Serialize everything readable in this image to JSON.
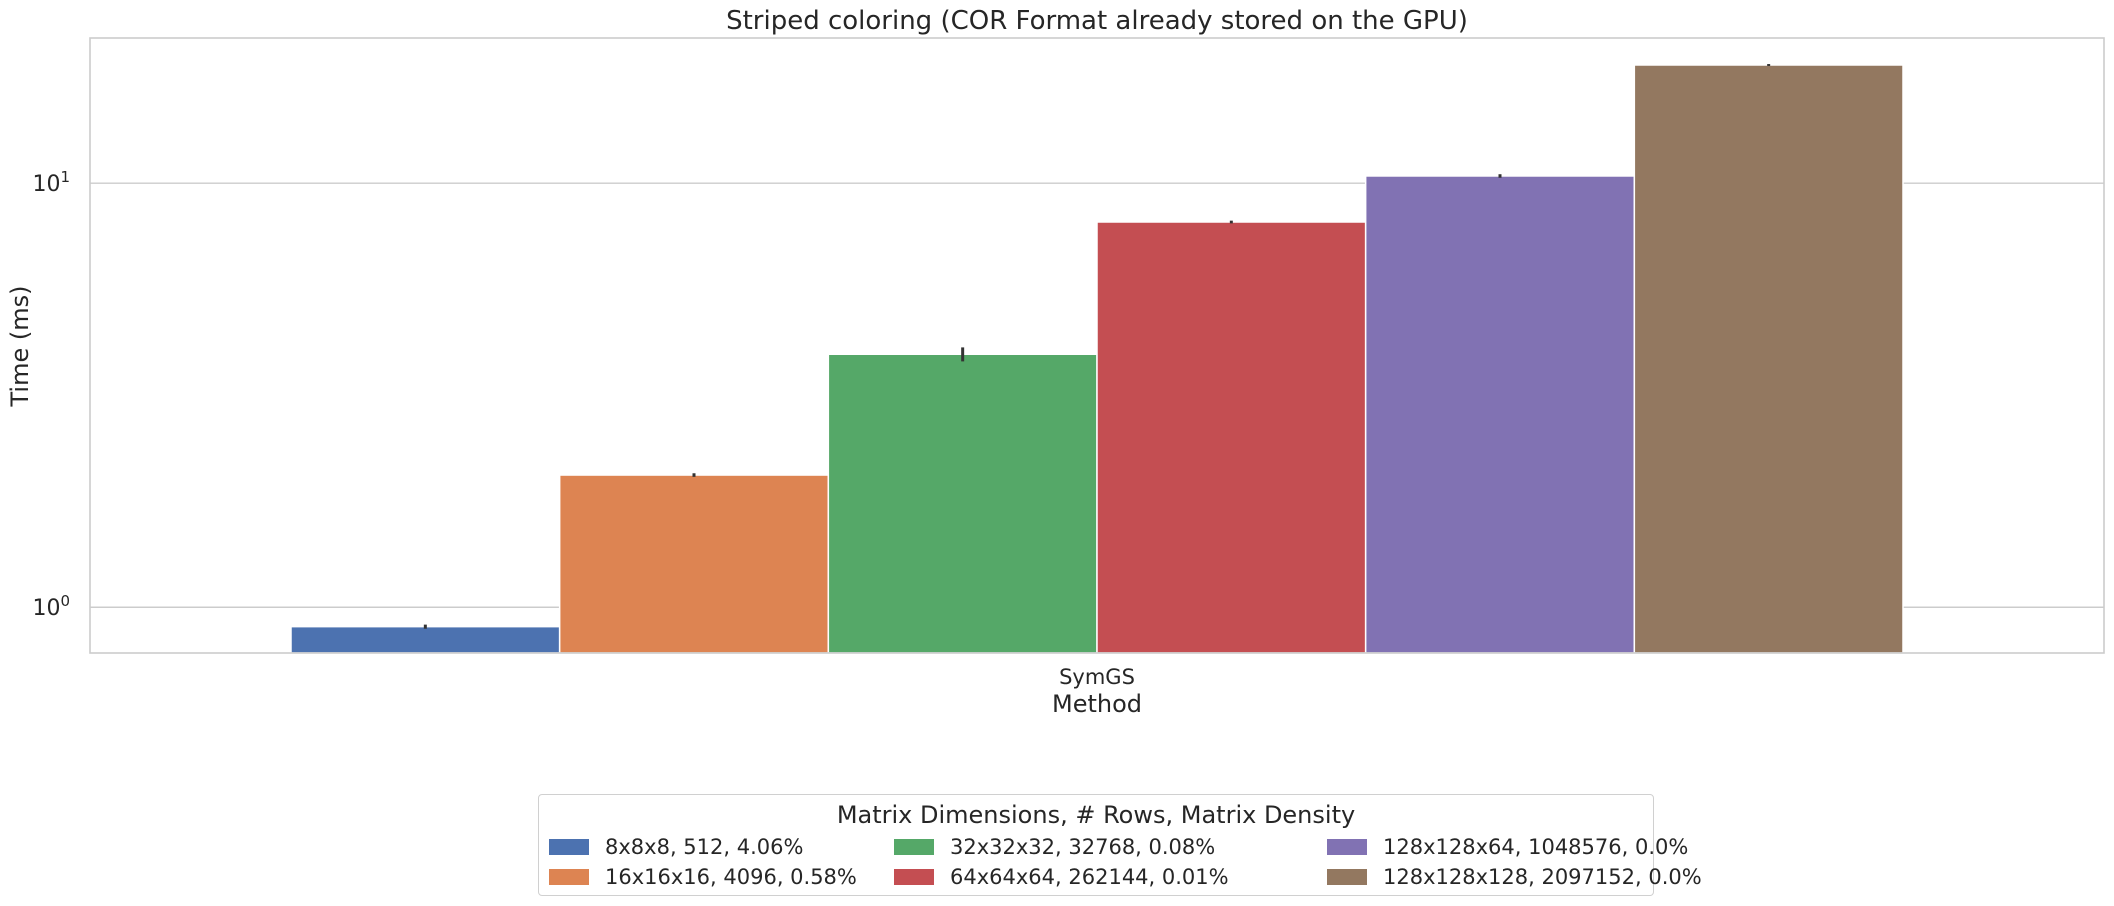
{
  "chart_data": {
    "type": "bar",
    "title": "Striped coloring (COR Format already stored on the GPU)",
    "xlabel": "Method",
    "ylabel": "Time (ms)",
    "yscale": "log",
    "ylim": [
      0.78,
      22
    ],
    "yticks": [
      1,
      10
    ],
    "grid": true,
    "categories": [
      "SymGS"
    ],
    "legend": {
      "title": "Matrix Dimensions, # Rows, Matrix Density",
      "placement": "bottom-center",
      "columns": 3
    },
    "series": [
      {
        "name": "8x8x8, 512, 4.06%",
        "color": "#4c72b0",
        "values": [
          0.9
        ],
        "error": [
          0.01
        ]
      },
      {
        "name": "16x16x16, 4096, 0.58%",
        "color": "#dd8452",
        "values": [
          2.05
        ],
        "error": [
          0.02
        ]
      },
      {
        "name": "32x32x32, 32768, 0.08%",
        "color": "#55a868",
        "values": [
          3.95
        ],
        "error": [
          0.15
        ]
      },
      {
        "name": "64x64x64, 262144, 0.01%",
        "color": "#c44e52",
        "values": [
          8.1
        ],
        "error": [
          0.06
        ]
      },
      {
        "name": "128x128x64, 1048576, 0.0%",
        "color": "#8172b3",
        "values": [
          10.4
        ],
        "error": [
          0.1
        ]
      },
      {
        "name": "128x128x128, 2097152, 0.0%",
        "color": "#937860",
        "values": [
          19.0
        ],
        "error": [
          0.1
        ]
      }
    ]
  }
}
